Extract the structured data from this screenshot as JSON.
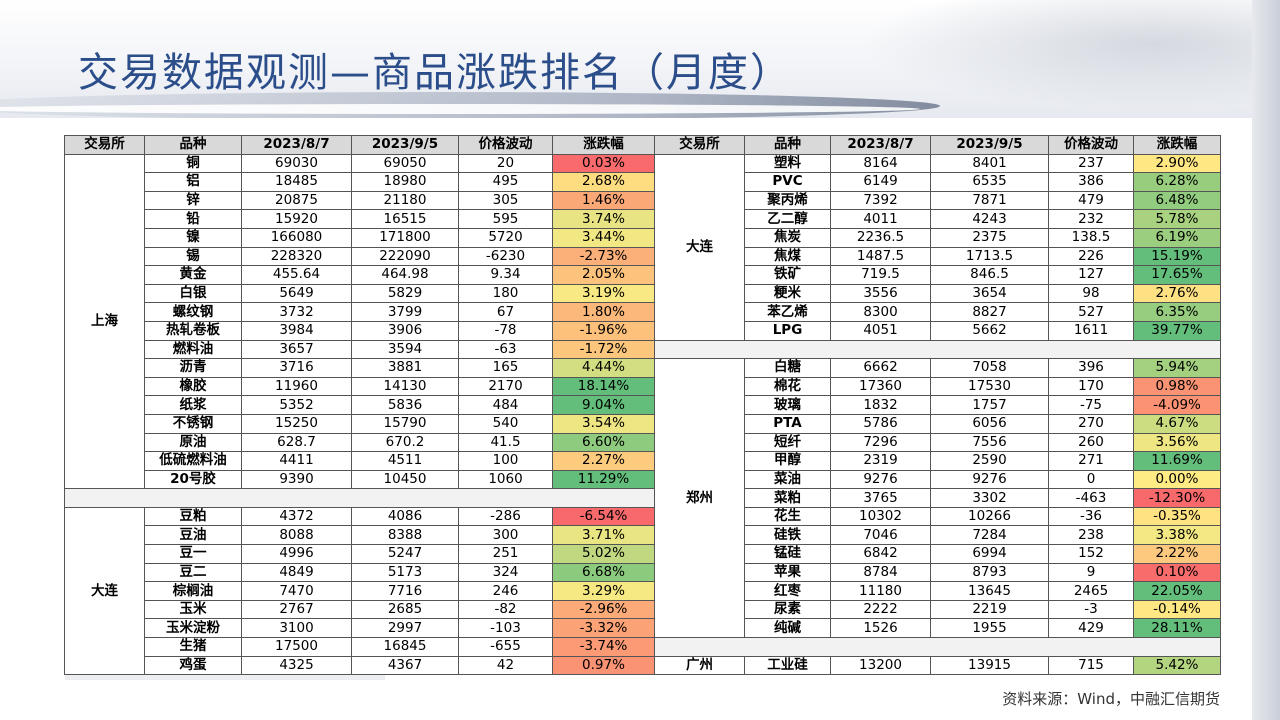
{
  "title": "交易数据观测—商品涨跌排名（月度）",
  "source": "资料来源：Wind，中融汇信期货",
  "headers": [
    "交易所",
    "品种",
    "2023/8/7",
    "2023/9/5",
    "价格波动",
    "涨跌幅"
  ],
  "left": {
    "groups": [
      {
        "exchange": "上海",
        "rows": [
          [
            "铜",
            "69030",
            "69050",
            "20",
            "0.03%",
            0.03
          ],
          [
            "铝",
            "18485",
            "18980",
            "495",
            "2.68%",
            2.68
          ],
          [
            "锌",
            "20875",
            "21180",
            "305",
            "1.46%",
            1.46
          ],
          [
            "铅",
            "15920",
            "16515",
            "595",
            "3.74%",
            3.74
          ],
          [
            "镍",
            "166080",
            "171800",
            "5720",
            "3.44%",
            3.44
          ],
          [
            "锡",
            "228320",
            "222090",
            "-6230",
            "-2.73%",
            -2.73
          ],
          [
            "黄金",
            "455.64",
            "464.98",
            "9.34",
            "2.05%",
            2.05
          ],
          [
            "白银",
            "5649",
            "5829",
            "180",
            "3.19%",
            3.19
          ],
          [
            "螺纹钢",
            "3732",
            "3799",
            "67",
            "1.80%",
            1.8
          ],
          [
            "热轧卷板",
            "3984",
            "3906",
            "-78",
            "-1.96%",
            -1.96
          ],
          [
            "燃料油",
            "3657",
            "3594",
            "-63",
            "-1.72%",
            -1.72
          ],
          [
            "沥青",
            "3716",
            "3881",
            "165",
            "4.44%",
            4.44
          ],
          [
            "橡胶",
            "11960",
            "14130",
            "2170",
            "18.14%",
            18.14
          ],
          [
            "纸浆",
            "5352",
            "5836",
            "484",
            "9.04%",
            9.04
          ],
          [
            "不锈钢",
            "15250",
            "15790",
            "540",
            "3.54%",
            3.54
          ],
          [
            "原油",
            "628.7",
            "670.2",
            "41.5",
            "6.60%",
            6.6
          ],
          [
            "低硫燃料油",
            "4411",
            "4511",
            "100",
            "2.27%",
            2.27
          ],
          [
            "20号胶",
            "9390",
            "10450",
            "1060",
            "11.29%",
            11.29
          ]
        ]
      },
      {
        "exchange": "大连",
        "rows": [
          [
            "豆粕",
            "4372",
            "4086",
            "-286",
            "-6.54%",
            -6.54
          ],
          [
            "豆油",
            "8088",
            "8388",
            "300",
            "3.71%",
            3.71
          ],
          [
            "豆一",
            "4996",
            "5247",
            "251",
            "5.02%",
            5.02
          ],
          [
            "豆二",
            "4849",
            "5173",
            "324",
            "6.68%",
            6.68
          ],
          [
            "棕榈油",
            "7470",
            "7716",
            "246",
            "3.29%",
            3.29
          ],
          [
            "玉米",
            "2767",
            "2685",
            "-82",
            "-2.96%",
            -2.96
          ],
          [
            "玉米淀粉",
            "3100",
            "2997",
            "-103",
            "-3.32%",
            -3.32
          ],
          [
            "生猪",
            "17500",
            "16845",
            "-655",
            "-3.74%",
            -3.74
          ],
          [
            "鸡蛋",
            "4325",
            "4367",
            "42",
            "0.97%",
            0.97
          ]
        ]
      }
    ]
  },
  "right": {
    "groups": [
      {
        "exchange": "大连",
        "rows": [
          [
            "塑料",
            "8164",
            "8401",
            "237",
            "2.90%",
            2.9
          ],
          [
            "PVC",
            "6149",
            "6535",
            "386",
            "6.28%",
            6.28
          ],
          [
            "聚丙烯",
            "7392",
            "7871",
            "479",
            "6.48%",
            6.48
          ],
          [
            "乙二醇",
            "4011",
            "4243",
            "232",
            "5.78%",
            5.78
          ],
          [
            "焦炭",
            "2236.5",
            "2375",
            "138.5",
            "6.19%",
            6.19
          ],
          [
            "焦煤",
            "1487.5",
            "1713.5",
            "226",
            "15.19%",
            15.19
          ],
          [
            "铁矿",
            "719.5",
            "846.5",
            "127",
            "17.65%",
            17.65
          ],
          [
            "粳米",
            "3556",
            "3654",
            "98",
            "2.76%",
            2.76
          ],
          [
            "苯乙烯",
            "8300",
            "8827",
            "527",
            "6.35%",
            6.35
          ],
          [
            "LPG",
            "4051",
            "5662",
            "1611",
            "39.77%",
            39.77
          ]
        ]
      },
      {
        "exchange": "郑州",
        "rows": [
          [
            "白糖",
            "6662",
            "7058",
            "396",
            "5.94%",
            5.94
          ],
          [
            "棉花",
            "17360",
            "17530",
            "170",
            "0.98%",
            0.98
          ],
          [
            "玻璃",
            "1832",
            "1757",
            "-75",
            "-4.09%",
            -4.09
          ],
          [
            "PTA",
            "5786",
            "6056",
            "270",
            "4.67%",
            4.67
          ],
          [
            "短纤",
            "7296",
            "7556",
            "260",
            "3.56%",
            3.56
          ],
          [
            "甲醇",
            "2319",
            "2590",
            "271",
            "11.69%",
            11.69
          ],
          [
            "菜油",
            "9276",
            "9276",
            "0",
            "0.00%",
            0.0
          ],
          [
            "菜粕",
            "3765",
            "3302",
            "-463",
            "-12.30%",
            -12.3
          ],
          [
            "花生",
            "10302",
            "10266",
            "-36",
            "-0.35%",
            -0.35
          ],
          [
            "硅铁",
            "7046",
            "7284",
            "238",
            "3.38%",
            3.38
          ],
          [
            "锰硅",
            "6842",
            "6994",
            "152",
            "2.22%",
            2.22
          ],
          [
            "苹果",
            "8784",
            "8793",
            "9",
            "0.10%",
            0.1
          ],
          [
            "红枣",
            "11180",
            "13645",
            "2465",
            "22.05%",
            22.05
          ],
          [
            "尿素",
            "2222",
            "2219",
            "-3",
            "-0.14%",
            -0.14
          ],
          [
            "纯碱",
            "1526",
            "1955",
            "429",
            "28.11%",
            28.11
          ]
        ]
      },
      {
        "exchange": "广州",
        "rows": [
          [
            "工业硅",
            "13200",
            "13915",
            "715",
            "5.42%",
            5.42
          ]
        ]
      }
    ]
  }
}
